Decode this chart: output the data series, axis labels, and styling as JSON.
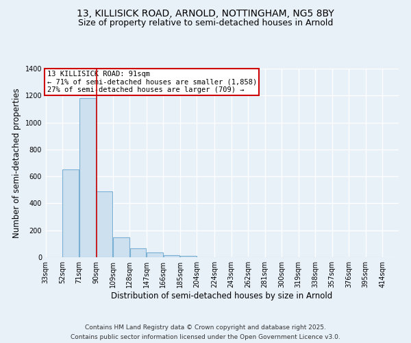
{
  "title_line1": "13, KILLISICK ROAD, ARNOLD, NOTTINGHAM, NG5 8BY",
  "title_line2": "Size of property relative to semi-detached houses in Arnold",
  "xlabel": "Distribution of semi-detached houses by size in Arnold",
  "ylabel": "Number of semi-detached properties",
  "bin_edges": [
    33,
    52,
    71,
    90,
    109,
    128,
    147,
    166,
    185,
    204,
    224,
    243,
    262,
    281,
    300,
    319,
    338,
    357,
    376,
    395,
    414
  ],
  "bar_heights": [
    0,
    650,
    1180,
    490,
    150,
    65,
    35,
    15,
    10,
    0,
    0,
    0,
    0,
    0,
    0,
    0,
    0,
    0,
    0,
    0
  ],
  "bar_color": "#cce0f0",
  "bar_edge_color": "#7ab0d4",
  "property_sqm": 91,
  "annotation_title": "13 KILLISICK ROAD: 91sqm",
  "annotation_line2": "← 71% of semi-detached houses are smaller (1,858)",
  "annotation_line3": "27% of semi-detached houses are larger (709) →",
  "annotation_box_color": "#ffffff",
  "annotation_box_edge": "#cc0000",
  "vline_color": "#cc0000",
  "ylim": [
    0,
    1400
  ],
  "yticks": [
    0,
    200,
    400,
    600,
    800,
    1000,
    1200,
    1400
  ],
  "footnote_line1": "Contains HM Land Registry data © Crown copyright and database right 2025.",
  "footnote_line2": "Contains public sector information licensed under the Open Government Licence v3.0.",
  "background_color": "#e8f0f8",
  "plot_background": "#e8f0f8",
  "grid_color": "#ffffff",
  "title_fontsize": 10,
  "subtitle_fontsize": 9,
  "label_fontsize": 8.5,
  "tick_fontsize": 7,
  "annot_fontsize": 7.5,
  "footnote_fontsize": 6.5
}
